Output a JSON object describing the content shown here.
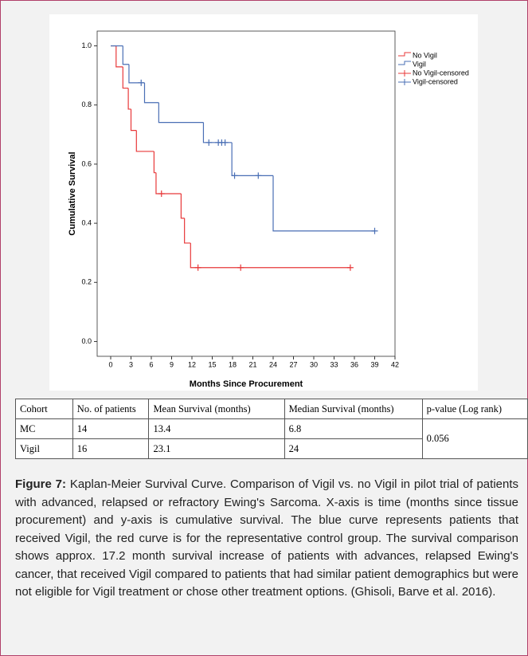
{
  "chart_data": {
    "type": "step",
    "x_label": "Months Since Procurement",
    "y_label": "Cumulative Survival",
    "xlim": [
      -2,
      42
    ],
    "ylim": [
      -0.05,
      1.05
    ],
    "xticks": [
      0,
      3,
      6,
      9,
      12,
      15,
      18,
      21,
      24,
      27,
      30,
      33,
      36,
      39,
      42
    ],
    "yticks": [
      {
        "value": 0,
        "label": "0.0"
      },
      0.2,
      0.4,
      0.6,
      0.8,
      {
        "value": 1,
        "label": "1.0"
      }
    ],
    "series": [
      {
        "name": "No Vigil",
        "color": "#e8393a",
        "kind": "step",
        "x": [
          0,
          0.8,
          1.8,
          2.6,
          3.0,
          3.8,
          6.4,
          6.7,
          10.4,
          10.9,
          11.8,
          35.4
        ],
        "values": [
          1,
          0.929,
          0.857,
          0.786,
          0.714,
          0.643,
          0.571,
          0.5,
          0.417,
          0.333,
          0.25,
          0.25
        ]
      },
      {
        "name": "Vigil",
        "color": "#4a6fb5",
        "kind": "step",
        "x": [
          0,
          1.8,
          2.7,
          5.0,
          7.1,
          13.7,
          17.9,
          24.0,
          39.0
        ],
        "values": [
          1,
          0.9375,
          0.875,
          0.808,
          0.741,
          0.673,
          0.561,
          0.374,
          0.374
        ]
      },
      {
        "name": "No Vigil-censored",
        "color": "#e8393a",
        "kind": "censored",
        "x": [
          7.5,
          12.9,
          19.2,
          35.4
        ],
        "values": [
          0.5,
          0.25,
          0.25,
          0.25
        ]
      },
      {
        "name": "Vigil-censored",
        "color": "#4a6fb5",
        "kind": "censored",
        "x": [
          4.5,
          14.5,
          15.9,
          16.4,
          16.9,
          18.3,
          21.8,
          39.0
        ],
        "values": [
          0.875,
          0.673,
          0.673,
          0.673,
          0.673,
          0.561,
          0.561,
          0.374
        ]
      }
    ]
  },
  "table": {
    "header": [
      "Cohort",
      "No. of patients",
      "Mean Survival (months)",
      "Median Survival (months)",
      "p-value (Log rank)"
    ],
    "rows": [
      [
        "MC",
        "14",
        "13.4",
        "6.8",
        "0.056"
      ],
      [
        "Vigil",
        "16",
        "23.1",
        "24"
      ]
    ]
  },
  "caption": {
    "label": "Figure 7:",
    "text": "Kaplan-Meier Survival Curve. Comparison of Vigil vs. no Vigil in pilot trial of patients with advanced, relapsed or refractory Ewing's Sarcoma. X-axis is time (months since tissue procurement) and y-axis is cumulative survival. The blue curve represents patients that received Vigil, the red curve is for the representative control group. The survival comparison shows approx. 17.2 month survival increase of patients with advances, relapsed Ewing's cancer, that received Vigil compared to patients that had similar patient demographics but were not eligible for Vigil treatment or chose other treatment options. (Ghisoli, Barve et al. 2016)."
  }
}
